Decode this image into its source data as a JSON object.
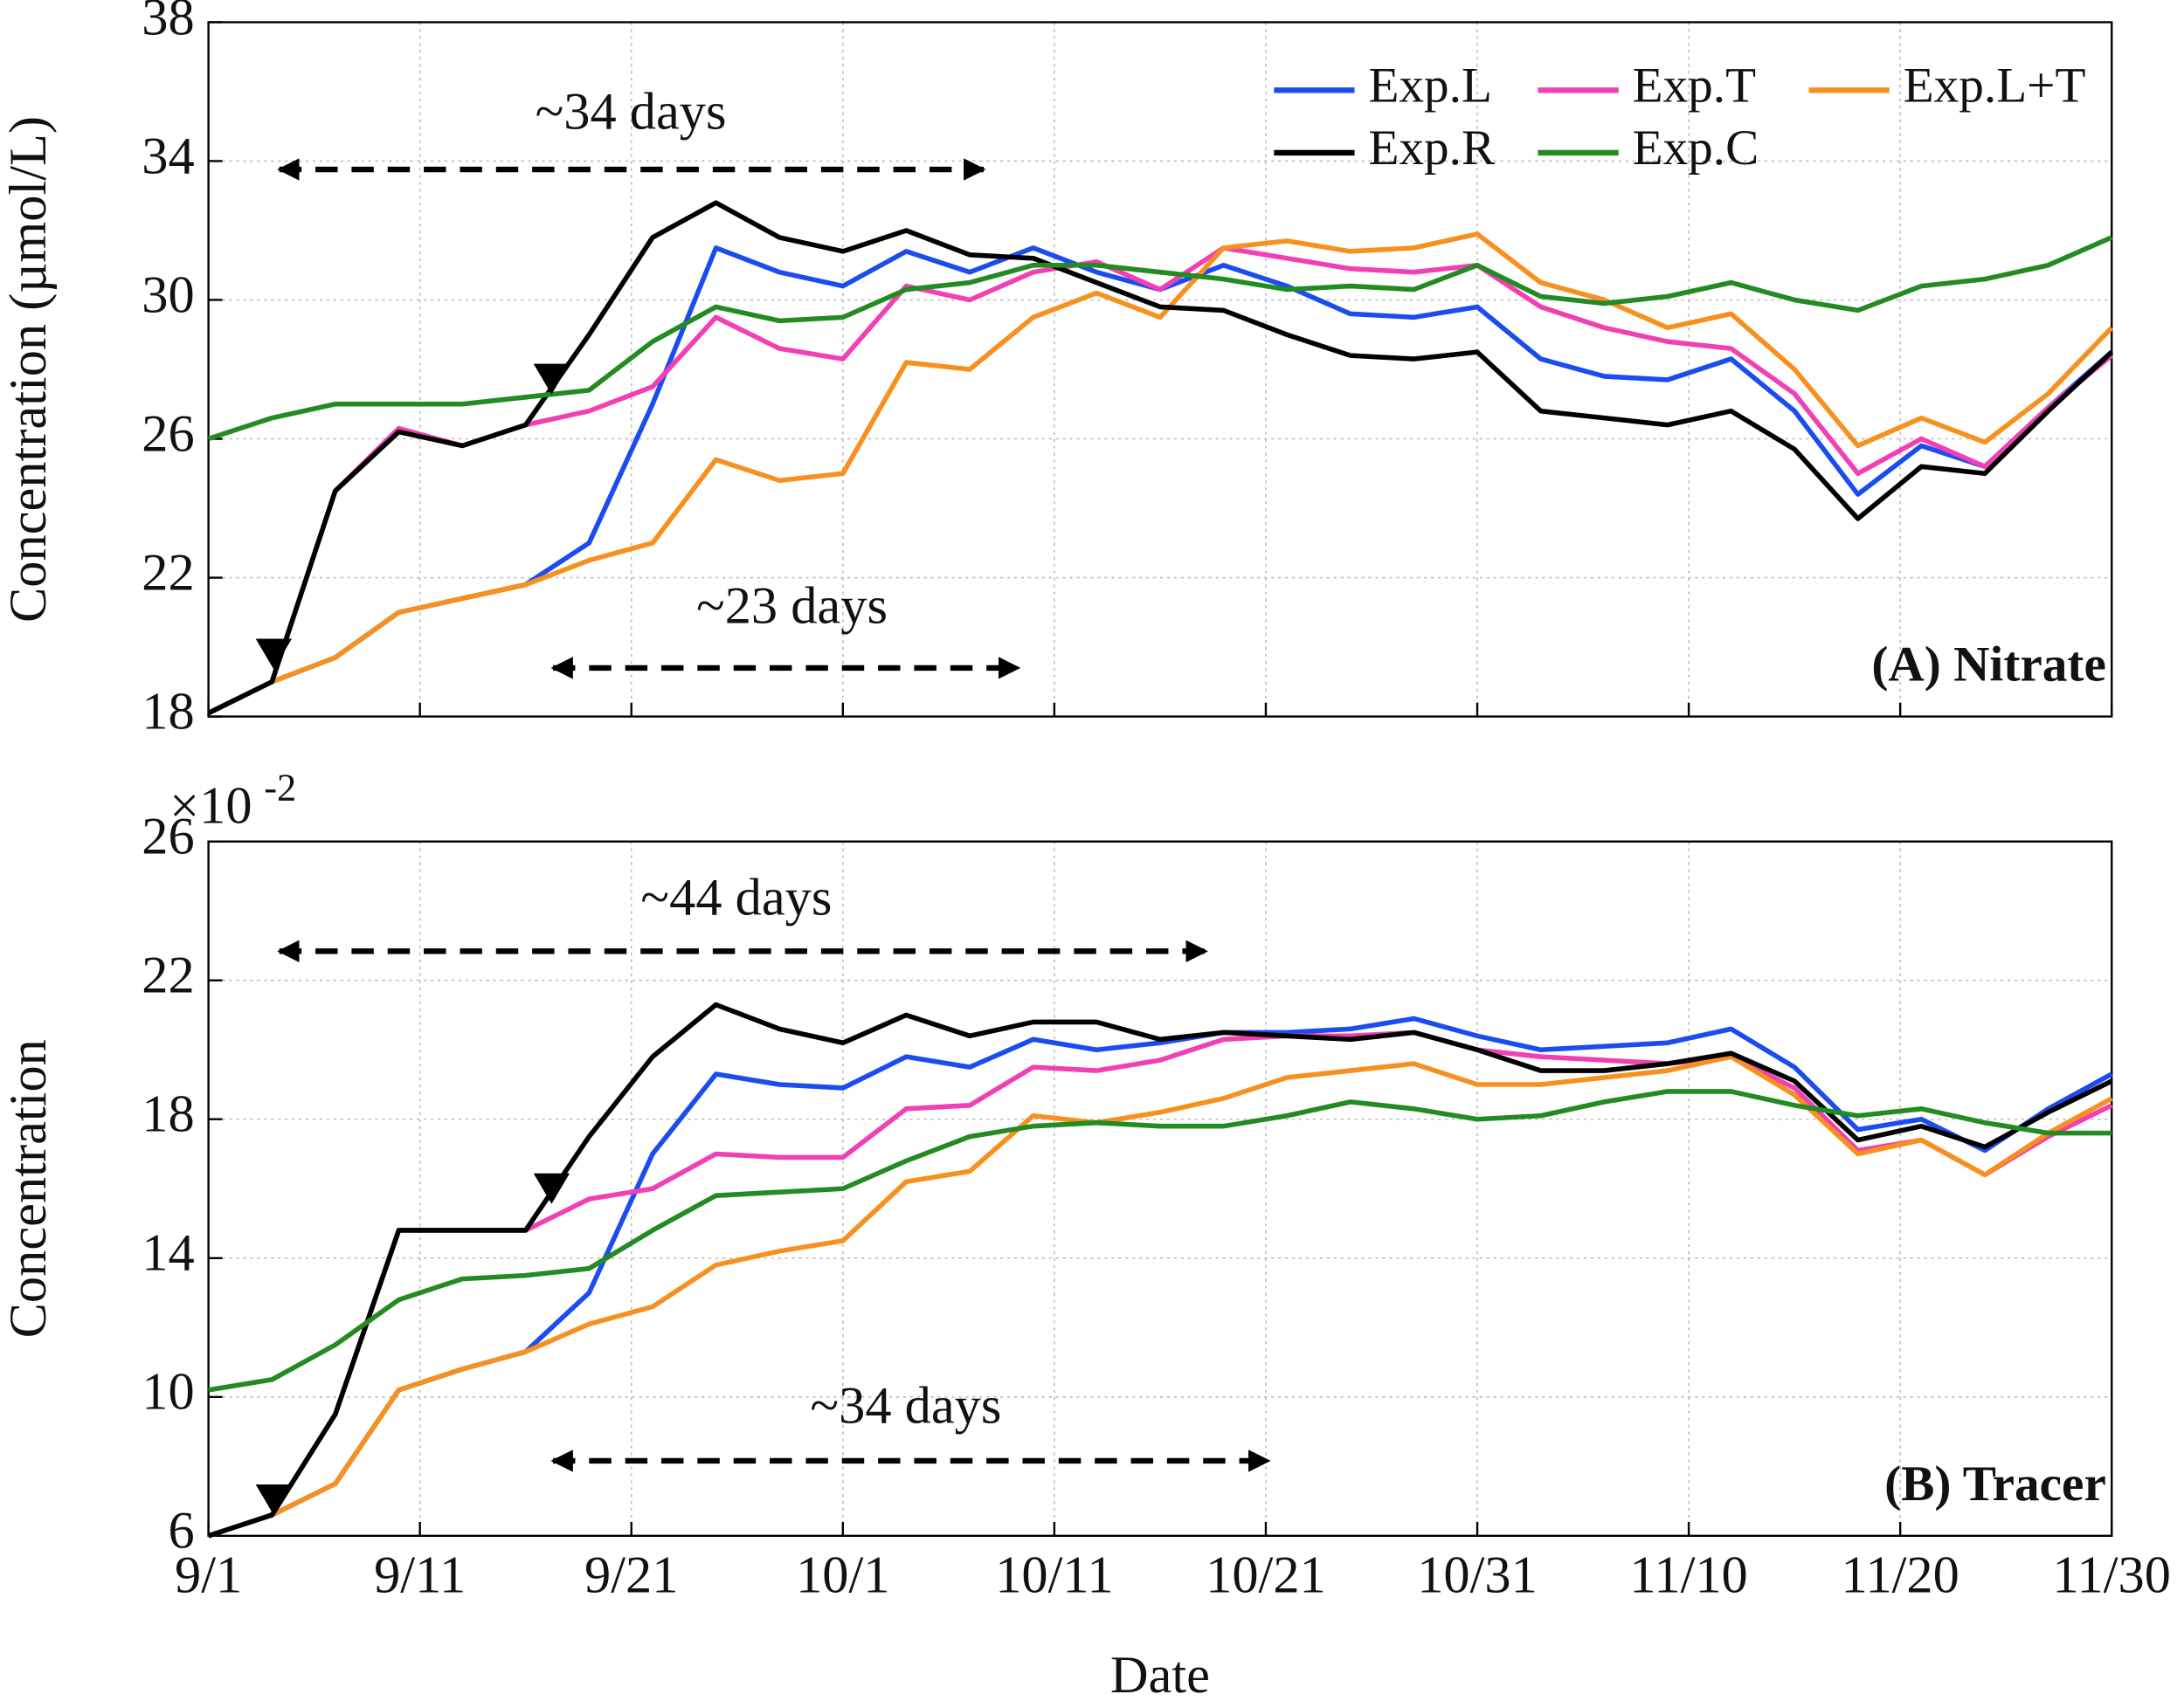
{
  "chart_data": [
    {
      "type": "line",
      "ylabel": "Concentration (µmol/L)",
      "panel_label": "(A) Nitrate",
      "ylim": [
        18,
        38
      ],
      "yticks": [
        18,
        22,
        26,
        30,
        34,
        38
      ],
      "grid": true,
      "legend": "upper right",
      "x": [
        "9/1",
        "9/4",
        "9/7",
        "9/10",
        "9/13",
        "9/16",
        "9/19",
        "9/22",
        "9/25",
        "9/28",
        "10/1",
        "10/4",
        "10/7",
        "10/10",
        "10/13",
        "10/16",
        "10/19",
        "10/22",
        "10/25",
        "10/28",
        "10/31",
        "11/3",
        "11/6",
        "11/9",
        "11/12",
        "11/15",
        "11/18",
        "11/21",
        "11/24",
        "11/27",
        "11/30"
      ],
      "xticks": [
        "9/1",
        "9/11",
        "9/21",
        "10/1",
        "10/11",
        "10/21",
        "10/31",
        "11/10",
        "11/20",
        "11/30"
      ],
      "annotations": [
        "~34 days",
        "~23 days"
      ],
      "series": [
        {
          "name": "Exp.L",
          "color": "#1a4cf0",
          "values": [
            18.1,
            19.0,
            19.7,
            21.0,
            21.4,
            21.8,
            23.0,
            27.0,
            31.5,
            30.8,
            30.4,
            31.4,
            30.8,
            31.5,
            30.8,
            30.3,
            31.0,
            30.4,
            29.6,
            29.5,
            29.8,
            28.3,
            27.8,
            27.7,
            28.3,
            26.8,
            24.4,
            25.8,
            25.2,
            26.9,
            28.5
          ]
        },
        {
          "name": "Exp.T",
          "color": "#f23fb4",
          "values": [
            18.1,
            19.0,
            24.5,
            26.3,
            25.8,
            26.4,
            26.8,
            27.5,
            29.5,
            28.6,
            28.3,
            30.4,
            30.0,
            30.8,
            31.1,
            30.3,
            31.5,
            31.2,
            30.9,
            30.8,
            31.0,
            29.8,
            29.2,
            28.8,
            28.6,
            27.3,
            25.0,
            26.0,
            25.2,
            26.9,
            28.4
          ]
        },
        {
          "name": "Exp.L+T",
          "color": "#f7901e",
          "values": [
            18.1,
            19.0,
            19.7,
            21.0,
            21.4,
            21.8,
            22.5,
            23.0,
            25.4,
            24.8,
            25.0,
            28.2,
            28.0,
            29.5,
            30.2,
            29.5,
            31.5,
            31.7,
            31.4,
            31.5,
            31.9,
            30.5,
            30.0,
            29.2,
            29.6,
            28.0,
            25.8,
            26.6,
            25.9,
            27.3,
            29.2
          ]
        },
        {
          "name": "Exp.R",
          "color": "#000000",
          "values": [
            18.1,
            19.0,
            24.5,
            26.2,
            25.8,
            26.4,
            29.0,
            31.8,
            32.8,
            31.8,
            31.4,
            32.0,
            31.3,
            31.2,
            30.5,
            29.8,
            29.7,
            29.0,
            28.4,
            28.3,
            28.5,
            26.8,
            26.6,
            26.4,
            26.8,
            25.7,
            23.7,
            25.2,
            25.0,
            26.8,
            28.5
          ]
        },
        {
          "name": "Exp.C",
          "color": "#228b22",
          "values": [
            26.0,
            26.6,
            27.0,
            27.0,
            27.0,
            27.2,
            27.4,
            28.8,
            29.8,
            29.4,
            29.5,
            30.3,
            30.5,
            31.0,
            31.0,
            30.8,
            30.6,
            30.3,
            30.4,
            30.3,
            31.0,
            30.1,
            29.9,
            30.1,
            30.5,
            30.0,
            29.7,
            30.4,
            30.6,
            31.0,
            31.8
          ]
        }
      ]
    },
    {
      "type": "line",
      "ylabel": "Concentration",
      "xlabel": "Date",
      "panel_label": "(B) Tracer",
      "y_multiplier": "×10",
      "y_exponent": "-2",
      "ylim": [
        6,
        26
      ],
      "yticks": [
        6,
        10,
        14,
        18,
        22,
        26
      ],
      "grid": true,
      "x": [
        "9/1",
        "9/4",
        "9/7",
        "9/10",
        "9/13",
        "9/16",
        "9/19",
        "9/22",
        "9/25",
        "9/28",
        "10/1",
        "10/4",
        "10/7",
        "10/10",
        "10/13",
        "10/16",
        "10/19",
        "10/22",
        "10/25",
        "10/28",
        "10/31",
        "11/3",
        "11/6",
        "11/9",
        "11/12",
        "11/15",
        "11/18",
        "11/21",
        "11/24",
        "11/27",
        "11/30"
      ],
      "xticks": [
        "9/1",
        "9/11",
        "9/21",
        "10/1",
        "10/11",
        "10/21",
        "10/31",
        "11/10",
        "11/20",
        "11/30"
      ],
      "annotations": [
        "~44 days",
        "~34 days"
      ],
      "series": [
        {
          "color": "#1a4cf0",
          "values": [
            6.0,
            6.6,
            7.5,
            10.2,
            10.8,
            11.3,
            13.0,
            17.0,
            19.3,
            19.0,
            18.9,
            19.8,
            19.5,
            20.3,
            20.0,
            20.2,
            20.5,
            20.5,
            20.6,
            20.9,
            20.4,
            20.0,
            20.1,
            20.2,
            20.6,
            19.5,
            17.7,
            18.0,
            17.1,
            18.3,
            19.3
          ]
        },
        {
          "color": "#f23fb4",
          "values": [
            6.0,
            6.6,
            9.5,
            14.8,
            14.8,
            14.8,
            15.7,
            16.0,
            17.0,
            16.9,
            16.9,
            18.3,
            18.4,
            19.5,
            19.4,
            19.7,
            20.3,
            20.4,
            20.4,
            20.5,
            20.0,
            19.8,
            19.7,
            19.6,
            19.8,
            18.9,
            17.1,
            17.4,
            16.4,
            17.5,
            18.4
          ]
        },
        {
          "color": "#f7901e",
          "values": [
            6.0,
            6.6,
            7.5,
            10.2,
            10.8,
            11.3,
            12.1,
            12.6,
            13.8,
            14.2,
            14.5,
            16.2,
            16.5,
            18.1,
            17.9,
            18.2,
            18.6,
            19.2,
            19.4,
            19.6,
            19.0,
            19.0,
            19.2,
            19.4,
            19.8,
            18.7,
            17.0,
            17.4,
            16.4,
            17.6,
            18.6
          ]
        },
        {
          "color": "#000000",
          "values": [
            6.0,
            6.6,
            9.5,
            14.8,
            14.8,
            14.8,
            17.5,
            19.8,
            21.3,
            20.6,
            20.2,
            21.0,
            20.4,
            20.8,
            20.8,
            20.3,
            20.5,
            20.4,
            20.3,
            20.5,
            20.0,
            19.4,
            19.4,
            19.6,
            19.9,
            19.1,
            17.4,
            17.8,
            17.2,
            18.2,
            19.1
          ]
        },
        {
          "color": "#228b22",
          "values": [
            10.2,
            10.5,
            11.5,
            12.8,
            13.4,
            13.5,
            13.7,
            14.8,
            15.8,
            15.9,
            16.0,
            16.8,
            17.5,
            17.8,
            17.9,
            17.8,
            17.8,
            18.1,
            18.5,
            18.3,
            18.0,
            18.1,
            18.5,
            18.8,
            18.8,
            18.4,
            18.1,
            18.3,
            17.9,
            17.6,
            17.6
          ]
        }
      ]
    }
  ]
}
